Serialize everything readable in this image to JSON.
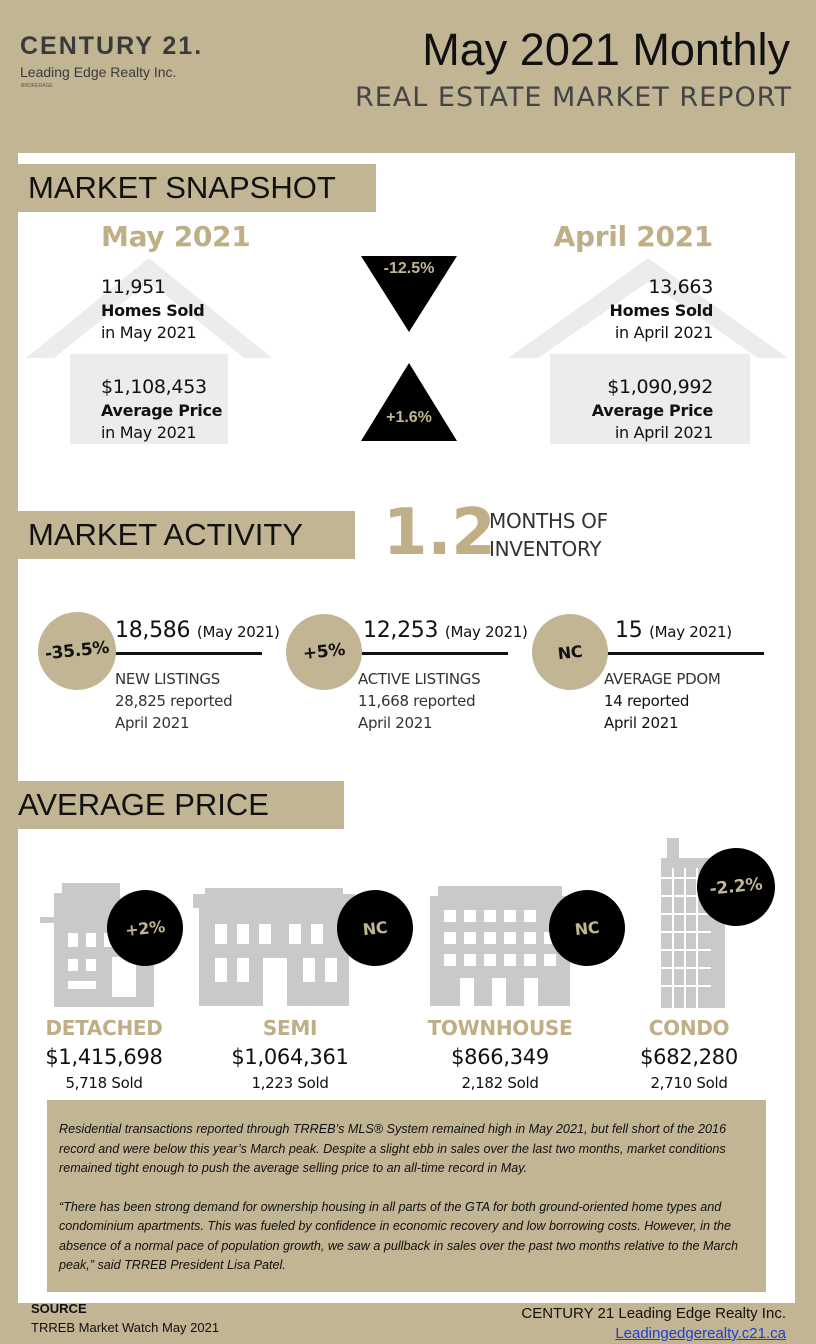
{
  "header": {
    "brand": "CENTURY 21.",
    "office": "Leading Edge Realty Inc.",
    "brokerage": "BROKERAGE",
    "title": "May 2021 Monthly",
    "subtitle": "REAL ESTATE MARKET REPORT"
  },
  "snapshot": {
    "label": "MARKET SNAPSHOT",
    "current": {
      "period": "May 2021",
      "homes_sold": "11,951",
      "homes_sold_label": "Homes Sold",
      "homes_sold_sub": "in May 2021",
      "avg_price": "$1,108,453",
      "avg_price_label": "Average Price",
      "avg_price_sub": "in May 2021"
    },
    "previous": {
      "period": "April 2021",
      "homes_sold": "13,663",
      "homes_sold_label": "Homes Sold",
      "homes_sold_sub": "in April 2021",
      "avg_price": "$1,090,992",
      "avg_price_label": "Average Price",
      "avg_price_sub": "in April 2021"
    },
    "sales_change": "-12.5%",
    "price_change": "+1.6%"
  },
  "activity": {
    "label": "MARKET ACTIVITY",
    "months_inventory": "1.2",
    "months_label_1": "MONTHS OF",
    "months_label_2": "INVENTORY",
    "items": [
      {
        "change": "-35.5%",
        "value": "18,586",
        "period": "(May 2021)",
        "label": "NEW LISTINGS",
        "reported_1": "28,825  reported",
        "reported_2": "April 2021"
      },
      {
        "change": "+5%",
        "value": "12,253",
        "period": "(May 2021)",
        "label": "ACTIVE LISTINGS",
        "reported_1": "11,668  reported",
        "reported_2": "April 2021"
      },
      {
        "change": "NC",
        "value": "15",
        "period": "(May 2021)",
        "label": "AVERAGE PDOM",
        "reported_1": "14 reported",
        "reported_2": "April 2021"
      }
    ]
  },
  "average_price": {
    "label": "AVERAGE PRICE",
    "types": [
      {
        "name": "DETACHED",
        "price": "$1,415,698",
        "sold": "5,718 Sold",
        "change": "+2%"
      },
      {
        "name": "SEMI",
        "price": "$1,064,361",
        "sold": "1,223 Sold",
        "change": "NC"
      },
      {
        "name": "TOWNHOUSE",
        "price": "$866,349",
        "sold": "2,182 Sold",
        "change": "NC"
      },
      {
        "name": "CONDO",
        "price": "$682,280",
        "sold": "2,710 Sold",
        "change": "-2.2%"
      }
    ]
  },
  "commentary": {
    "p1": "Residential transactions reported through TRREB’s MLS® System remained high in May 2021, but fell short of the 2016 record and were below this year’s March peak. Despite a slight ebb in sales over the last two months, market conditions remained tight enough to push the average selling price to an all-time record in May.",
    "p2": "“There has been strong demand for ownership housing in all parts of the GTA for both ground-oriented home types and condominium apartments. This was fueled by confidence in economic recovery and low borrowing costs. However, in the absence of a normal pace of population growth, we saw a pullback in sales over the past two months relative to the March peak,” said TRREB President Lisa Patel."
  },
  "footer": {
    "source_label": "SOURCE",
    "source": "TRREB Market Watch May 2021",
    "company": "CENTURY 21 Leading Edge Realty Inc.",
    "url": "Leadingedgerealty.c21.ca"
  },
  "colors": {
    "gold": "#c2b594",
    "black": "#000000",
    "link": "#1a3fd6"
  }
}
